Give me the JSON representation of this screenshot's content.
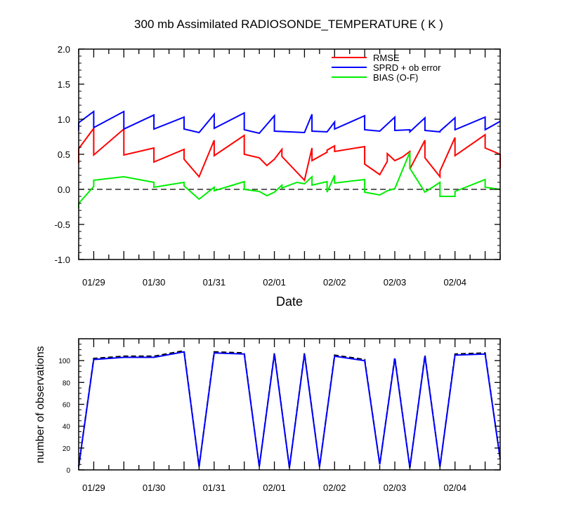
{
  "chart_data": [
    {
      "type": "line",
      "title": "300 mb Assimilated RADIOSONDE_TEMPERATURE ( K )",
      "xlabel": "Date",
      "ylabel": "",
      "x_tick_labels": [
        "01/29",
        "01/30",
        "01/31",
        "02/01",
        "02/02",
        "02/03",
        "02/04"
      ],
      "y_tick_labels": [
        "2.0",
        "1.5",
        "1.0",
        "0.5",
        "0.0",
        "-0.5",
        "-1.0"
      ],
      "xlim": [
        0,
        28
      ],
      "ylim": [
        -1.0,
        2.0
      ],
      "x_units": "6-hourly analysis steps (0 = 01/28 18Z)",
      "legend_position": "top-right",
      "zero_line": "dashed",
      "colors": {
        "rmse": "#ff0000",
        "sprd": "#0000ff",
        "bias": "#00ee00"
      },
      "series": [
        {
          "name": "RMSE",
          "key": "rmse",
          "color": "#ff0000",
          "points": [
            [
              0,
              0.37
            ],
            [
              0,
              0.58
            ],
            [
              1,
              0.87
            ],
            [
              1,
              0.49
            ],
            [
              3,
              0.86
            ],
            [
              3,
              0.49
            ],
            [
              5,
              0.59
            ],
            [
              5,
              0.39
            ],
            [
              7,
              0.57
            ],
            [
              7,
              0.43
            ],
            [
              8,
              0.18
            ],
            [
              9,
              0.7
            ],
            [
              9,
              0.48
            ],
            [
              11,
              0.77
            ],
            [
              11,
              0.5
            ],
            [
              12,
              0.45
            ],
            [
              12.5,
              0.34
            ],
            [
              13,
              0.43
            ],
            [
              13.5,
              0.57
            ],
            [
              13.5,
              0.47
            ],
            [
              15,
              0.13
            ],
            [
              15.5,
              0.59
            ],
            [
              15.5,
              0.41
            ],
            [
              16.5,
              0.53
            ],
            [
              16.5,
              0.56
            ],
            [
              17,
              0.62
            ],
            [
              17,
              0.54
            ],
            [
              19,
              0.61
            ],
            [
              19,
              0.36
            ],
            [
              20,
              0.21
            ],
            [
              20.5,
              0.4
            ],
            [
              20.5,
              0.51
            ],
            [
              21,
              0.41
            ],
            [
              21.5,
              0.46
            ],
            [
              22,
              0.54
            ],
            [
              22,
              0.29
            ],
            [
              23,
              0.7
            ],
            [
              23,
              0.45
            ],
            [
              24,
              0.18
            ],
            [
              24,
              0.26
            ],
            [
              25,
              0.74
            ],
            [
              25,
              0.48
            ],
            [
              27,
              0.78
            ],
            [
              27,
              0.59
            ],
            [
              28,
              0.5
            ],
            [
              28,
              0.3
            ]
          ]
        },
        {
          "name": "SPRD + ob error",
          "key": "sprd",
          "color": "#0000ff",
          "points": [
            [
              0,
              0.84
            ],
            [
              0,
              0.95
            ],
            [
              1,
              1.11
            ],
            [
              1,
              0.88
            ],
            [
              3,
              1.11
            ],
            [
              3,
              0.86
            ],
            [
              5,
              1.06
            ],
            [
              5,
              0.86
            ],
            [
              7,
              1.03
            ],
            [
              7,
              0.86
            ],
            [
              8,
              0.81
            ],
            [
              9,
              1.07
            ],
            [
              9,
              0.87
            ],
            [
              11,
              1.09
            ],
            [
              11,
              0.85
            ],
            [
              12,
              0.8
            ],
            [
              13,
              1.05
            ],
            [
              13,
              0.83
            ],
            [
              15,
              0.81
            ],
            [
              15.5,
              1.07
            ],
            [
              15.5,
              0.83
            ],
            [
              16.5,
              0.82
            ],
            [
              17,
              0.96
            ],
            [
              17,
              0.86
            ],
            [
              19,
              1.05
            ],
            [
              19,
              0.85
            ],
            [
              20,
              0.83
            ],
            [
              21,
              1.03
            ],
            [
              21,
              0.84
            ],
            [
              22,
              0.85
            ],
            [
              22,
              0.82
            ],
            [
              23,
              1.02
            ],
            [
              23,
              0.84
            ],
            [
              24,
              0.82
            ],
            [
              24,
              0.83
            ],
            [
              25,
              1.02
            ],
            [
              25,
              0.85
            ],
            [
              27,
              1.03
            ],
            [
              27,
              0.85
            ],
            [
              28,
              0.97
            ]
          ]
        },
        {
          "name": "BIAS (O-F)",
          "key": "bias",
          "color": "#00ee00",
          "points": [
            [
              0,
              -0.27
            ],
            [
              0,
              -0.2
            ],
            [
              1,
              0.04
            ],
            [
              1,
              0.13
            ],
            [
              3,
              0.18
            ],
            [
              5,
              0.1
            ],
            [
              5,
              0.03
            ],
            [
              7,
              0.1
            ],
            [
              7,
              0.05
            ],
            [
              8,
              -0.14
            ],
            [
              9,
              0.03
            ],
            [
              9,
              -0.02
            ],
            [
              11,
              0.11
            ],
            [
              11,
              0.0
            ],
            [
              12,
              -0.03
            ],
            [
              12.5,
              -0.09
            ],
            [
              13,
              -0.04
            ],
            [
              13.5,
              0.06
            ],
            [
              13.5,
              0.02
            ],
            [
              14.5,
              0.1
            ],
            [
              15,
              0.08
            ],
            [
              15.5,
              0.18
            ],
            [
              15.5,
              0.06
            ],
            [
              16.5,
              0.11
            ],
            [
              16.5,
              -0.04
            ],
            [
              17,
              0.2
            ],
            [
              17,
              0.09
            ],
            [
              19,
              0.14
            ],
            [
              19,
              -0.04
            ],
            [
              20,
              -0.08
            ],
            [
              20.5,
              -0.02
            ],
            [
              21,
              0.01
            ],
            [
              22,
              0.53
            ],
            [
              22,
              0.3
            ],
            [
              23,
              -0.04
            ],
            [
              24,
              0.1
            ],
            [
              24,
              -0.1
            ],
            [
              25,
              -0.1
            ],
            [
              25,
              -0.03
            ],
            [
              27,
              0.14
            ],
            [
              27,
              0.03
            ],
            [
              28,
              0.0
            ]
          ]
        }
      ]
    },
    {
      "type": "line",
      "title": "",
      "xlabel": "",
      "ylabel": "number of observations",
      "x_tick_labels": [
        "01/29",
        "01/30",
        "01/31",
        "02/01",
        "02/02",
        "02/03",
        "02/04"
      ],
      "y_tick_labels": [
        "100",
        "80",
        "60",
        "40",
        "20",
        "0"
      ],
      "xlim": [
        0,
        28
      ],
      "ylim": [
        0,
        120
      ],
      "series": [
        {
          "name": "",
          "key": "nobs-possible",
          "style": "dashed",
          "color": "#000000",
          "points": [
            [
              0,
              3
            ],
            [
              1,
              102
            ],
            [
              3,
              104
            ],
            [
              5,
              104
            ],
            [
              7,
              109
            ],
            [
              8,
              3
            ],
            [
              9,
              108
            ],
            [
              11,
              107
            ],
            [
              12,
              3
            ],
            [
              13,
              107
            ],
            [
              14,
              2
            ],
            [
              15,
              107
            ],
            [
              16,
              3
            ],
            [
              17,
              105
            ],
            [
              19,
              101
            ],
            [
              20,
              5
            ],
            [
              21,
              103
            ],
            [
              22,
              2
            ],
            [
              23,
              105
            ],
            [
              24,
              3
            ],
            [
              25,
              106
            ],
            [
              27,
              107
            ],
            [
              28,
              10
            ]
          ]
        },
        {
          "name": "",
          "key": "nobs-used",
          "style": "solid",
          "color": "#0000ff",
          "points": [
            [
              0,
              3
            ],
            [
              1,
              101
            ],
            [
              3,
              103
            ],
            [
              5,
              103
            ],
            [
              7,
              108
            ],
            [
              8,
              3
            ],
            [
              9,
              107
            ],
            [
              11,
              106
            ],
            [
              12,
              3
            ],
            [
              13,
              106
            ],
            [
              14,
              2
            ],
            [
              15,
              106
            ],
            [
              16,
              3
            ],
            [
              17,
              104
            ],
            [
              19,
              100
            ],
            [
              20,
              5
            ],
            [
              21,
              102
            ],
            [
              22,
              2
            ],
            [
              23,
              104
            ],
            [
              24,
              3
            ],
            [
              25,
              105
            ],
            [
              27,
              106
            ],
            [
              28,
              10
            ]
          ]
        }
      ]
    }
  ]
}
